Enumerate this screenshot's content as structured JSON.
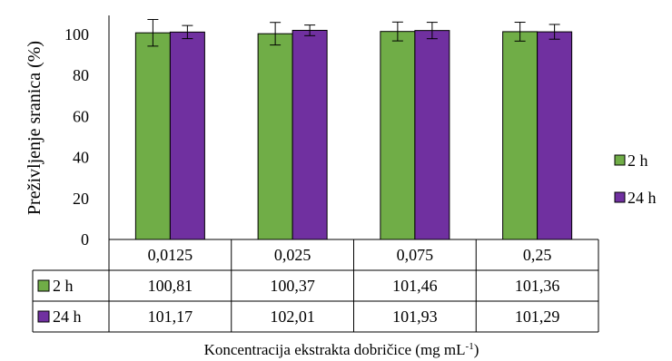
{
  "chart_data": {
    "type": "bar",
    "title": "",
    "xlabel": "Koncentracija ekstrakta dobričice (mg mL-1)",
    "xlabel_main": "Koncentracija ekstrakta dobričice (mg mL",
    "xlabel_sup": "-1",
    "xlabel_end": ")",
    "ylabel": "Preživljenje sranica (%)",
    "ylim": [
      0,
      100
    ],
    "yticks": [
      "0",
      "20",
      "40",
      "60",
      "80",
      "100"
    ],
    "grid": false,
    "legend_position": "right",
    "data_table": true,
    "categories": [
      "0,0125",
      "0,025",
      "0,075",
      "0,25"
    ],
    "series": [
      {
        "name": "2 h",
        "color": "#70ad47",
        "values": [
          100.81,
          100.37,
          101.46,
          101.36
        ],
        "labels": [
          "100,81",
          "100,37",
          "101,46",
          "101,36"
        ],
        "errors": [
          6.5,
          5.5,
          4.6,
          4.6
        ]
      },
      {
        "name": "24 h",
        "color": "#7030a0",
        "values": [
          101.17,
          102.01,
          101.93,
          101.29
        ],
        "labels": [
          "101,17",
          "102,01",
          "101,93",
          "101,29"
        ],
        "errors": [
          3.2,
          2.6,
          4.0,
          3.6
        ]
      }
    ]
  }
}
